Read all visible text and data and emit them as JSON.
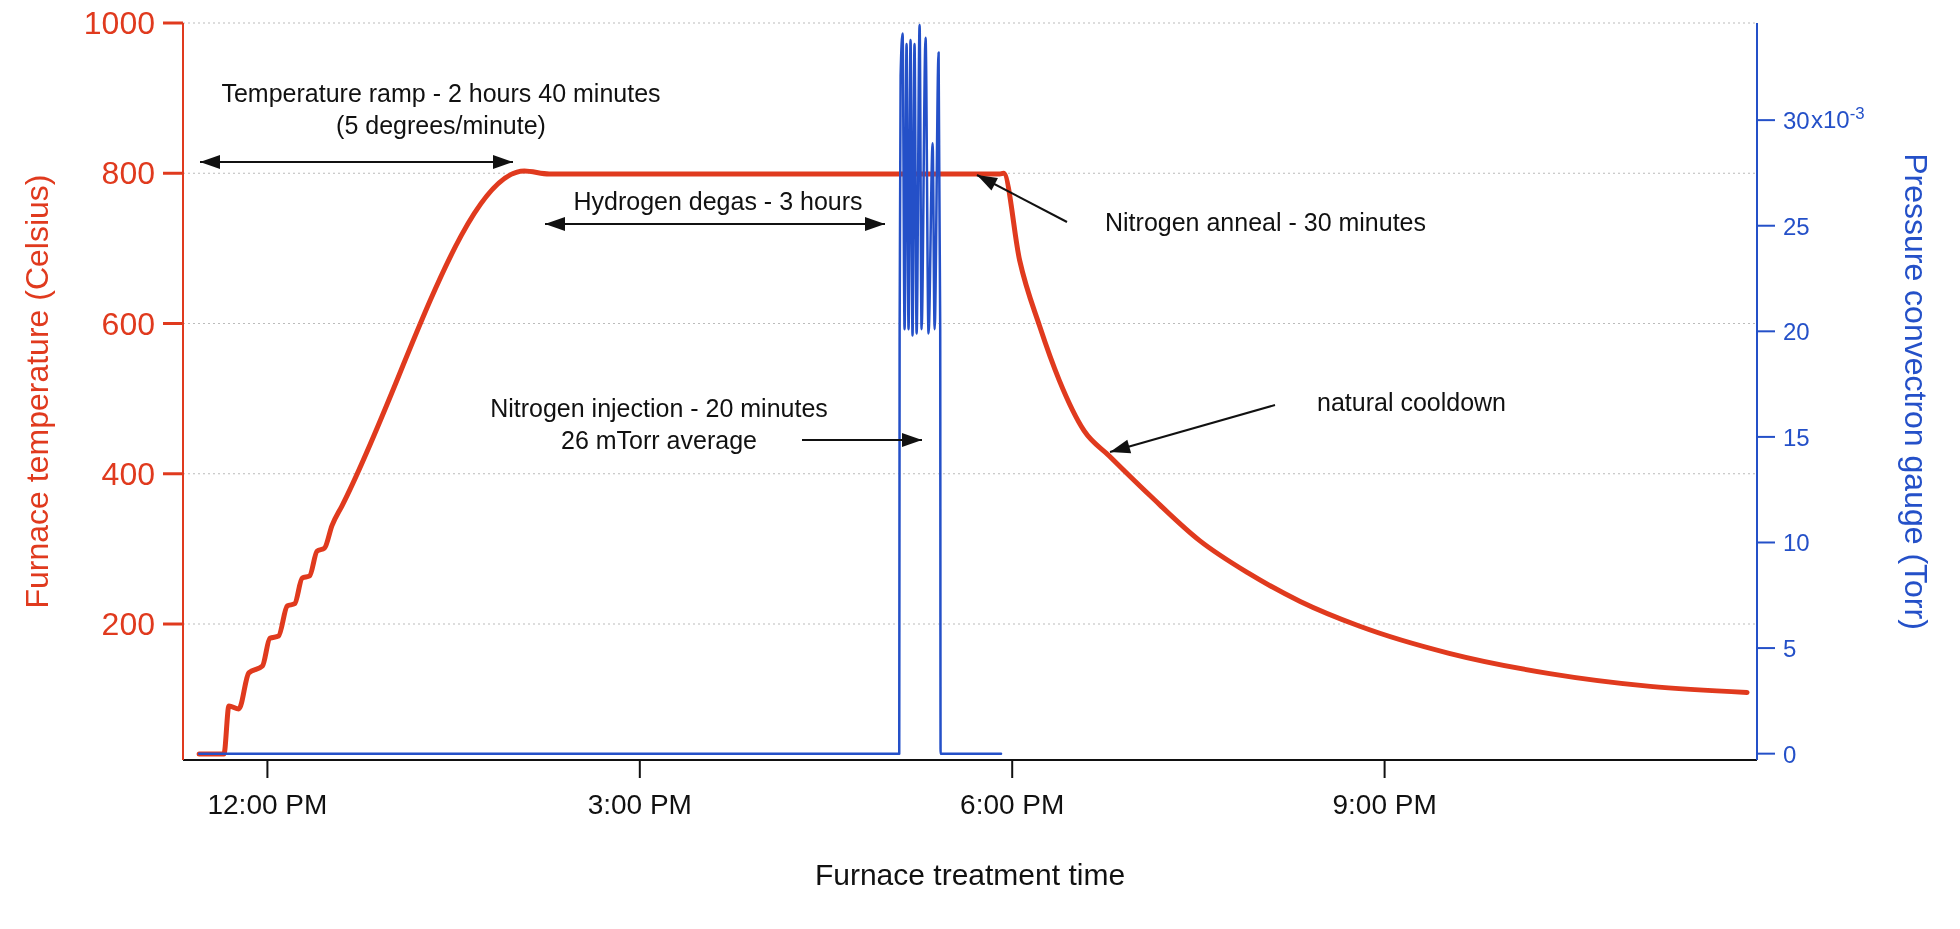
{
  "chart_data": {
    "type": "line",
    "xlabel": "Furnace treatment time",
    "ylabel": "Furnace temperature (Celsius)",
    "y2label": "Pressure convectron gauge (Torr)",
    "xlim": [
      11.32,
      24.0
    ],
    "xticks": [
      {
        "value": 12,
        "label": "12:00 PM"
      },
      {
        "value": 15,
        "label": "3:00 PM"
      },
      {
        "value": 18,
        "label": "6:00 PM"
      },
      {
        "value": 21,
        "label": "9:00 PM"
      }
    ],
    "ylim": [
      19,
      1000
    ],
    "yticks": [
      200,
      400,
      600,
      800,
      1000
    ],
    "y2lim": [
      -0.3,
      34.6
    ],
    "y2ticks": [
      0,
      5,
      10,
      15,
      20,
      25,
      30
    ],
    "grid": "y",
    "line_style": "solid",
    "series": [
      {
        "color": "#e03a1e",
        "x": [
          11.45,
          11.65,
          11.69,
          11.77,
          11.85,
          11.96,
          12.02,
          12.09,
          12.16,
          12.22,
          12.28,
          12.34,
          12.4,
          12.46,
          12.52,
          12.6,
          14.07,
          14.27,
          17.9,
          17.93,
          18.06,
          18.22,
          18.38,
          18.58,
          18.78,
          19.11,
          19.51,
          19.9,
          20.32,
          20.8,
          21.52,
          22.33,
          23.14,
          23.92
        ],
        "values": [
          27,
          27,
          91,
          87,
          135,
          144,
          181,
          184,
          224,
          227,
          261,
          264,
          297,
          301,
          331,
          357,
          803,
          799,
          799,
          800,
          684,
          597,
          524,
          457,
          424,
          371,
          311,
          268,
          230,
          197,
          161,
          134,
          117,
          109
        ]
      },
      {
        "color": "#2450c8",
        "axis": "y2",
        "x": [
          11.45,
          17.09,
          17.093,
          17.101,
          17.117,
          17.133,
          17.149,
          17.165,
          17.181,
          17.197,
          17.213,
          17.23,
          17.254,
          17.27,
          17.302,
          17.326,
          17.359,
          17.375,
          17.407,
          17.42,
          17.423,
          17.91
        ],
        "values": [
          0,
          0,
          19.9,
          32.1,
          34.1,
          20.1,
          33.6,
          20.1,
          33.8,
          19.8,
          33.6,
          19.9,
          34.5,
          20.1,
          33.9,
          19.9,
          28.9,
          20.1,
          33.2,
          20.1,
          0,
          0
        ]
      }
    ],
    "annotations": [
      "Temperature ramp - 2 hours 40 minutes\n(5 degrees/minute)",
      "Hydrogen degas - 3 hours",
      "Nitrogen injection - 20 minutes\n26 mTorr average",
      "Nitrogen anneal - 30 minutes",
      "natural cooldown",
      "x10$^{-3}$"
    ]
  }
}
